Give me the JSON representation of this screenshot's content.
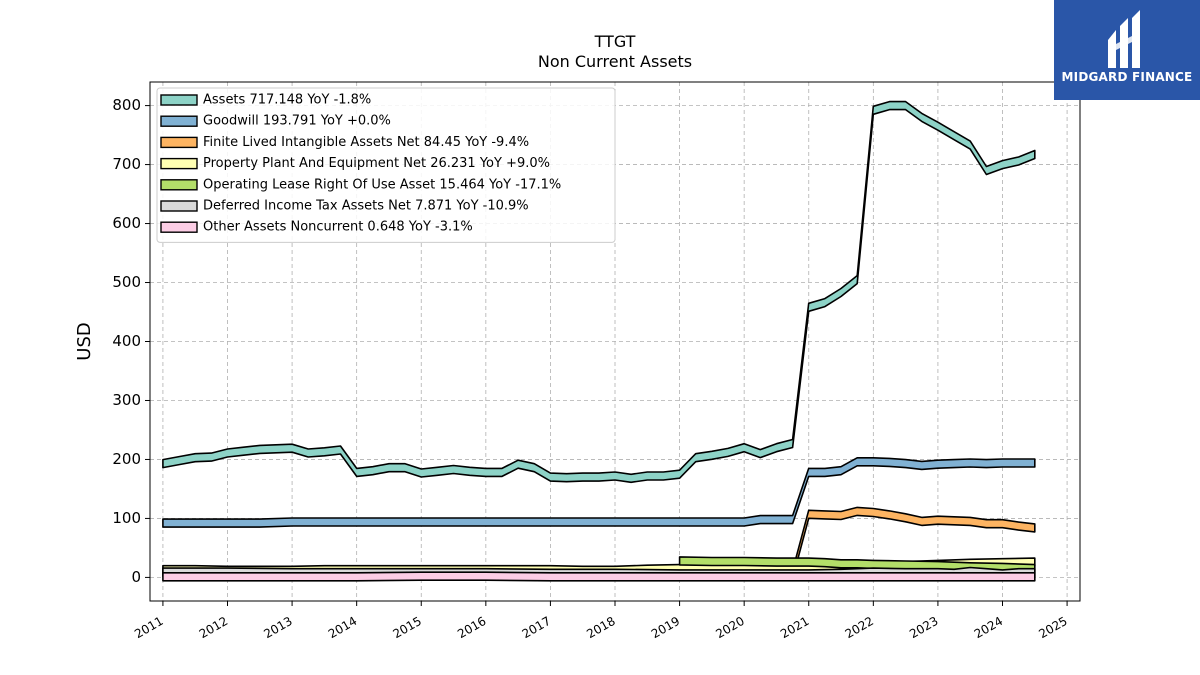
{
  "chart_data": {
    "type": "line",
    "title": "TTGT",
    "subtitle": "Non Current  Assets",
    "ylabel": "USD",
    "xlabel": "",
    "xlim": [
      2010.8,
      2025.2
    ],
    "ylim": [
      -40,
      840
    ],
    "x_ticks": [
      "2011",
      "2012",
      "2013",
      "2014",
      "2015",
      "2016",
      "2017",
      "2018",
      "2019",
      "2020",
      "2021",
      "2022",
      "2023",
      "2024",
      "2025"
    ],
    "y_ticks": [
      0,
      100,
      200,
      300,
      400,
      500,
      600,
      700,
      800
    ],
    "grid": true,
    "legend_position": "top-left",
    "series": [
      {
        "name": "Assets  717.148 YoY -1.8%",
        "color": "#8dd3c7",
        "x": [
          2011.0,
          2011.25,
          2011.5,
          2011.75,
          2012.0,
          2012.25,
          2012.5,
          2012.75,
          2013.0,
          2013.25,
          2013.5,
          2013.75,
          2014.0,
          2014.25,
          2014.5,
          2014.75,
          2015.0,
          2015.25,
          2015.5,
          2015.75,
          2016.0,
          2016.25,
          2016.5,
          2016.75,
          2017.0,
          2017.25,
          2017.5,
          2017.75,
          2018.0,
          2018.25,
          2018.5,
          2018.75,
          2019.0,
          2019.25,
          2019.5,
          2019.75,
          2020.0,
          2020.25,
          2020.5,
          2020.75,
          2021.0,
          2021.25,
          2021.5,
          2021.75,
          2022.0,
          2022.25,
          2022.5,
          2022.75,
          2023.0,
          2023.25,
          2023.5,
          2023.75,
          2024.0,
          2024.25,
          2024.5
        ],
        "values": [
          193,
          198,
          203,
          204,
          211,
          214,
          217,
          218,
          219,
          211,
          213,
          216,
          178,
          181,
          186,
          186,
          177,
          180,
          183,
          180,
          178,
          178,
          192,
          186,
          170,
          169,
          170,
          170,
          172,
          168,
          172,
          172,
          175,
          203,
          207,
          212,
          220,
          210,
          220,
          227,
          458,
          466,
          483,
          505,
          792,
          800,
          800,
          780,
          765,
          749,
          733,
          690,
          700,
          706,
          717
        ]
      },
      {
        "name": "Goodwill  193.791 YoY +0.0%",
        "color": "#80b1d3",
        "x": [
          2011.0,
          2011.5,
          2012.0,
          2012.5,
          2013.0,
          2013.5,
          2014.0,
          2014.5,
          2015.0,
          2015.5,
          2016.0,
          2016.5,
          2017.0,
          2017.5,
          2018.0,
          2018.5,
          2019.0,
          2019.5,
          2020.0,
          2020.25,
          2020.5,
          2020.75,
          2021.0,
          2021.25,
          2021.5,
          2021.75,
          2022.0,
          2022.25,
          2022.5,
          2022.75,
          2023.0,
          2023.25,
          2023.5,
          2023.75,
          2024.0,
          2024.25,
          2024.5
        ],
        "values": [
          92,
          92,
          92,
          92,
          94,
          94,
          94,
          94,
          94,
          94,
          94,
          94,
          94,
          94,
          94,
          94,
          94,
          94,
          94,
          98,
          98,
          98,
          178,
          178,
          181,
          196,
          196,
          195,
          193,
          190,
          192,
          193,
          194,
          193,
          194,
          194,
          194
        ]
      },
      {
        "name": "Finite Lived Intangible Assets Net  84.45 YoY -9.4%",
        "color": "#fdb462",
        "x": [
          2020.75,
          2021.0,
          2021.25,
          2021.5,
          2021.75,
          2022.0,
          2022.25,
          2022.5,
          2022.75,
          2023.0,
          2023.25,
          2023.5,
          2023.75,
          2024.0,
          2024.25,
          2024.5
        ],
        "values": [
          5,
          107,
          106,
          105,
          112,
          110,
          106,
          101,
          95,
          97,
          96,
          95,
          91,
          91,
          87,
          84
        ]
      },
      {
        "name": "Property Plant And Equipment Net  26.231 YoY +9.0%",
        "color": "#ffffb3",
        "x": [
          2011.0,
          2011.5,
          2012.0,
          2012.5,
          2013.0,
          2013.5,
          2014.0,
          2014.5,
          2015.0,
          2015.5,
          2016.0,
          2016.5,
          2017.0,
          2017.5,
          2018.0,
          2018.5,
          2019.0,
          2019.5,
          2020.0,
          2020.5,
          2021.0,
          2021.5,
          2022.0,
          2022.5,
          2023.0,
          2023.5,
          2024.0,
          2024.5
        ],
        "values": [
          13,
          13,
          12,
          12,
          12,
          13,
          13,
          13,
          13,
          13,
          13,
          13,
          13,
          12,
          12,
          14,
          15,
          15,
          16,
          16,
          17,
          17,
          18,
          20,
          22,
          24,
          25,
          26
        ]
      },
      {
        "name": "Operating Lease Right Of Use Asset  15.464 YoY -17.1%",
        "color": "#b3de69",
        "x": [
          2019.0,
          2019.5,
          2020.0,
          2020.5,
          2021.0,
          2021.25,
          2021.5,
          2021.75,
          2022.0,
          2022.5,
          2023.0,
          2023.5,
          2024.0,
          2024.5
        ],
        "values": [
          28,
          27,
          27,
          26,
          26,
          25,
          23,
          23,
          22,
          21,
          20,
          18,
          17,
          15
        ]
      },
      {
        "name": "Deferred Income Tax Assets Net  7.871 YoY -10.9%",
        "color": "#d9d9d9",
        "x": [
          2011.0,
          2012.0,
          2013.0,
          2014.0,
          2015.0,
          2016.0,
          2017.0,
          2018.0,
          2019.0,
          2020.0,
          2021.0,
          2021.5,
          2022.0,
          2022.5,
          2023.0,
          2023.25,
          2023.5,
          2023.75,
          2024.0,
          2024.25,
          2024.5
        ],
        "values": [
          9,
          9,
          8,
          8,
          8,
          8,
          7,
          7,
          6,
          6,
          6,
          7,
          9,
          8,
          8,
          7,
          10,
          8,
          6,
          8,
          8
        ]
      },
      {
        "name": "Other Assets Noncurrent  0.648 YoY -3.1%",
        "color": "#fccde5",
        "x": [
          2011.0,
          2012.0,
          2013.0,
          2014.0,
          2015.0,
          2016.0,
          2017.0,
          2018.0,
          2019.0,
          2020.0,
          2021.0,
          2022.0,
          2023.0,
          2024.0,
          2024.5
        ],
        "values": [
          1,
          1,
          1,
          1,
          2,
          2,
          1,
          1,
          1,
          1,
          1,
          1,
          1,
          1,
          1
        ]
      }
    ]
  },
  "logo": {
    "text": "MIDGARD FINANCE"
  }
}
